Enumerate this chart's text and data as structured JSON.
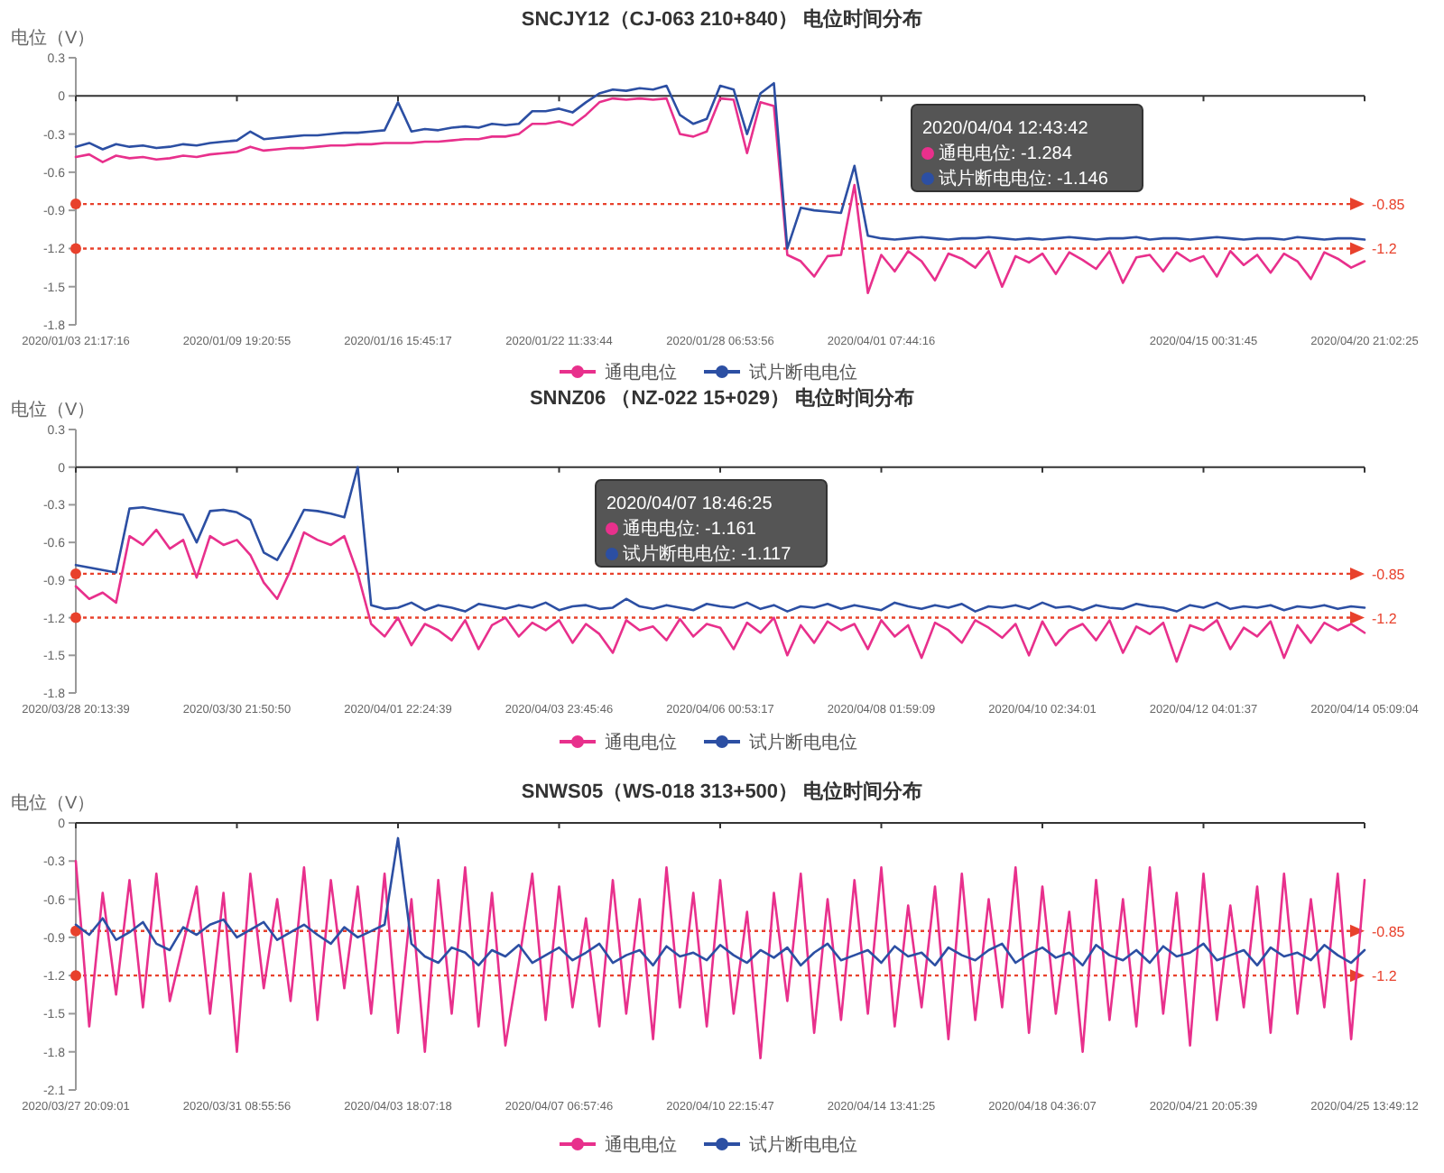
{
  "chart_data": [
    {
      "type": "line",
      "title": "SNCJY12（CJ-063  210+840） 电位时间分布",
      "ylabel": "电位（V）",
      "categories": [
        "2020/01/03 21:17:16",
        null,
        null,
        null,
        null,
        null,
        null,
        null,
        null,
        null,
        null,
        null,
        "2020/01/09 19:20:55",
        null,
        null,
        null,
        null,
        null,
        null,
        null,
        null,
        null,
        null,
        null,
        "2020/01/16 15:45:17",
        null,
        null,
        null,
        null,
        null,
        null,
        null,
        null,
        null,
        null,
        null,
        "2020/01/22 11:33:44",
        null,
        null,
        null,
        null,
        null,
        null,
        null,
        null,
        null,
        null,
        null,
        "2020/01/28 06:53:56",
        null,
        null,
        null,
        null,
        null,
        null,
        null,
        null,
        null,
        null,
        null,
        "2020/04/01 07:44:16",
        null,
        null,
        null,
        null,
        null,
        null,
        null,
        null,
        null,
        null,
        null,
        null,
        null,
        null,
        null,
        null,
        null,
        null,
        null,
        null,
        null,
        null,
        null,
        "2020/04/15 00:31:45",
        null,
        null,
        null,
        null,
        null,
        null,
        null,
        null,
        null,
        null,
        null,
        "2020/04/20 21:02:25"
      ],
      "series": [
        {
          "name": "通电电位",
          "color": "#e8308c",
          "values": [
            -0.48,
            -0.46,
            -0.52,
            -0.47,
            -0.49,
            -0.48,
            -0.5,
            -0.49,
            -0.47,
            -0.48,
            -0.46,
            -0.45,
            -0.44,
            -0.4,
            -0.43,
            -0.42,
            -0.41,
            -0.41,
            -0.4,
            -0.39,
            -0.39,
            -0.38,
            -0.38,
            -0.37,
            -0.37,
            -0.37,
            -0.36,
            -0.36,
            -0.35,
            -0.34,
            -0.34,
            -0.32,
            -0.32,
            -0.3,
            -0.22,
            -0.22,
            -0.2,
            -0.23,
            -0.15,
            -0.05,
            -0.02,
            -0.03,
            -0.02,
            -0.03,
            -0.02,
            -0.3,
            -0.32,
            -0.28,
            -0.02,
            -0.03,
            -0.45,
            -0.05,
            -0.08,
            -1.25,
            -1.3,
            -1.42,
            -1.26,
            -1.25,
            -0.7,
            -1.55,
            -1.25,
            -1.38,
            -1.22,
            -1.3,
            -1.45,
            -1.24,
            -1.28,
            -1.35,
            -1.22,
            -1.5,
            -1.26,
            -1.31,
            -1.24,
            -1.4,
            -1.23,
            -1.29,
            -1.36,
            -1.22,
            -1.47,
            -1.27,
            -1.25,
            -1.38,
            -1.23,
            -1.3,
            -1.26,
            -1.42,
            -1.22,
            -1.33,
            -1.25,
            -1.39,
            -1.24,
            -1.3,
            -1.44,
            -1.23,
            -1.28,
            -1.35,
            -1.3
          ]
        },
        {
          "name": "试片断电电位",
          "color": "#2c4fa3",
          "values": [
            -0.4,
            -0.37,
            -0.42,
            -0.38,
            -0.4,
            -0.39,
            -0.41,
            -0.4,
            -0.38,
            -0.39,
            -0.37,
            -0.36,
            -0.35,
            -0.28,
            -0.34,
            -0.33,
            -0.32,
            -0.31,
            -0.31,
            -0.3,
            -0.29,
            -0.29,
            -0.28,
            -0.27,
            -0.05,
            -0.28,
            -0.26,
            -0.27,
            -0.25,
            -0.24,
            -0.25,
            -0.22,
            -0.23,
            -0.22,
            -0.12,
            -0.12,
            -0.1,
            -0.13,
            -0.05,
            0.02,
            0.05,
            0.04,
            0.06,
            0.05,
            0.08,
            -0.15,
            -0.22,
            -0.18,
            0.08,
            0.05,
            -0.3,
            0.02,
            0.1,
            -1.2,
            -0.88,
            -0.9,
            -0.91,
            -0.92,
            -0.55,
            -1.1,
            -1.12,
            -1.13,
            -1.12,
            -1.11,
            -1.12,
            -1.13,
            -1.12,
            -1.12,
            -1.11,
            -1.12,
            -1.13,
            -1.12,
            -1.13,
            -1.12,
            -1.11,
            -1.12,
            -1.13,
            -1.12,
            -1.12,
            -1.11,
            -1.13,
            -1.12,
            -1.12,
            -1.13,
            -1.12,
            -1.11,
            -1.12,
            -1.13,
            -1.12,
            -1.12,
            -1.13,
            -1.11,
            -1.12,
            -1.13,
            -1.12,
            -1.12,
            -1.13
          ]
        }
      ],
      "ylim": [
        -1.8,
        0.3
      ],
      "yticks": [
        0.3,
        0,
        -0.3,
        -0.6,
        -0.9,
        -1.2,
        -1.5,
        -1.8
      ],
      "ref_lines": [
        {
          "axis": "y",
          "value": -0.85,
          "label": "-0.85",
          "color": "#e8412c",
          "line_style": "dotted"
        },
        {
          "axis": "y",
          "value": -1.2,
          "label": "-1.2",
          "color": "#e8412c",
          "line_style": "dotted"
        }
      ],
      "legend": "bottom",
      "annotations": [
        "2020/04/04 12:43:42",
        "通电电位: -1.284",
        "试片断电电位: -1.146"
      ]
    },
    {
      "type": "line",
      "title": "SNNZ06 （NZ-022   15+029） 电位时间分布",
      "ylabel": "电位（V）",
      "categories": [
        "2020/03/28 20:13:39",
        null,
        null,
        null,
        null,
        null,
        null,
        null,
        null,
        null,
        null,
        null,
        "2020/03/30 21:50:50",
        null,
        null,
        null,
        null,
        null,
        null,
        null,
        null,
        null,
        null,
        null,
        "2020/04/01 22:24:39",
        null,
        null,
        null,
        null,
        null,
        null,
        null,
        null,
        null,
        null,
        null,
        "2020/04/03 23:45:46",
        null,
        null,
        null,
        null,
        null,
        null,
        null,
        null,
        null,
        null,
        null,
        "2020/04/06 00:53:17",
        null,
        null,
        null,
        null,
        null,
        null,
        null,
        null,
        null,
        null,
        null,
        "2020/04/08 01:59:09",
        null,
        null,
        null,
        null,
        null,
        null,
        null,
        null,
        null,
        null,
        null,
        "2020/04/10 02:34:01",
        null,
        null,
        null,
        null,
        null,
        null,
        null,
        null,
        null,
        null,
        null,
        "2020/04/12 04:01:37",
        null,
        null,
        null,
        null,
        null,
        null,
        null,
        null,
        null,
        null,
        null,
        "2020/04/14 05:09:04"
      ],
      "series": [
        {
          "name": "通电电位",
          "color": "#e8308c",
          "values": [
            -0.95,
            -1.05,
            -1.0,
            -1.08,
            -0.55,
            -0.62,
            -0.5,
            -0.65,
            -0.58,
            -0.88,
            -0.55,
            -0.62,
            -0.58,
            -0.7,
            -0.92,
            -1.05,
            -0.82,
            -0.52,
            -0.58,
            -0.62,
            -0.55,
            -0.85,
            -1.25,
            -1.35,
            -1.2,
            -1.42,
            -1.25,
            -1.3,
            -1.38,
            -1.22,
            -1.45,
            -1.26,
            -1.2,
            -1.35,
            -1.24,
            -1.3,
            -1.22,
            -1.4,
            -1.25,
            -1.33,
            -1.48,
            -1.22,
            -1.3,
            -1.27,
            -1.38,
            -1.21,
            -1.35,
            -1.25,
            -1.28,
            -1.45,
            -1.24,
            -1.32,
            -1.2,
            -1.5,
            -1.26,
            -1.4,
            -1.23,
            -1.3,
            -1.25,
            -1.45,
            -1.22,
            -1.35,
            -1.26,
            -1.52,
            -1.24,
            -1.3,
            -1.4,
            -1.22,
            -1.28,
            -1.36,
            -1.25,
            -1.5,
            -1.23,
            -1.42,
            -1.3,
            -1.25,
            -1.38,
            -1.22,
            -1.48,
            -1.27,
            -1.33,
            -1.24,
            -1.55,
            -1.26,
            -1.3,
            -1.22,
            -1.45,
            -1.28,
            -1.35,
            -1.23,
            -1.52,
            -1.26,
            -1.4,
            -1.24,
            -1.3,
            -1.25,
            -1.32
          ]
        },
        {
          "name": "试片断电电位",
          "color": "#2c4fa3",
          "values": [
            -0.78,
            -0.8,
            -0.82,
            -0.84,
            -0.33,
            -0.32,
            -0.34,
            -0.36,
            -0.38,
            -0.6,
            -0.35,
            -0.34,
            -0.36,
            -0.42,
            -0.68,
            -0.74,
            -0.55,
            -0.34,
            -0.35,
            -0.37,
            -0.4,
            0.0,
            -1.1,
            -1.13,
            -1.12,
            -1.08,
            -1.14,
            -1.1,
            -1.12,
            -1.15,
            -1.09,
            -1.11,
            -1.13,
            -1.1,
            -1.12,
            -1.08,
            -1.14,
            -1.11,
            -1.1,
            -1.13,
            -1.12,
            -1.05,
            -1.11,
            -1.13,
            -1.1,
            -1.12,
            -1.14,
            -1.09,
            -1.11,
            -1.12,
            -1.08,
            -1.13,
            -1.1,
            -1.15,
            -1.11,
            -1.12,
            -1.09,
            -1.13,
            -1.1,
            -1.12,
            -1.14,
            -1.08,
            -1.11,
            -1.13,
            -1.1,
            -1.12,
            -1.09,
            -1.15,
            -1.11,
            -1.12,
            -1.1,
            -1.13,
            -1.08,
            -1.12,
            -1.11,
            -1.14,
            -1.1,
            -1.12,
            -1.13,
            -1.09,
            -1.11,
            -1.12,
            -1.15,
            -1.1,
            -1.12,
            -1.08,
            -1.13,
            -1.11,
            -1.12,
            -1.1,
            -1.14,
            -1.11,
            -1.12,
            -1.1,
            -1.13,
            -1.11,
            -1.12
          ]
        }
      ],
      "ylim": [
        -1.8,
        0.3
      ],
      "yticks": [
        0.3,
        0,
        -0.3,
        -0.6,
        -0.9,
        -1.2,
        -1.5,
        -1.8
      ],
      "ref_lines": [
        {
          "axis": "y",
          "value": -0.85,
          "label": "-0.85",
          "color": "#e8412c",
          "line_style": "dotted"
        },
        {
          "axis": "y",
          "value": -1.2,
          "label": "-1.2",
          "color": "#e8412c",
          "line_style": "dotted"
        }
      ],
      "legend": "bottom",
      "annotations": [
        "2020/04/07 18:46:25",
        "通电电位: -1.161",
        "试片断电电位: -1.117"
      ]
    },
    {
      "type": "line",
      "title": "SNWS05（WS-018 313+500） 电位时间分布",
      "ylabel": "电位（V）",
      "categories": [
        "2020/03/27 20:09:01",
        null,
        null,
        null,
        null,
        null,
        null,
        null,
        null,
        null,
        null,
        null,
        "2020/03/31 08:55:56",
        null,
        null,
        null,
        null,
        null,
        null,
        null,
        null,
        null,
        null,
        null,
        "2020/04/03 18:07:18",
        null,
        null,
        null,
        null,
        null,
        null,
        null,
        null,
        null,
        null,
        null,
        "2020/04/07 06:57:46",
        null,
        null,
        null,
        null,
        null,
        null,
        null,
        null,
        null,
        null,
        null,
        "2020/04/10 22:15:47",
        null,
        null,
        null,
        null,
        null,
        null,
        null,
        null,
        null,
        null,
        null,
        "2020/04/14 13:41:25",
        null,
        null,
        null,
        null,
        null,
        null,
        null,
        null,
        null,
        null,
        null,
        "2020/04/18 04:36:07",
        null,
        null,
        null,
        null,
        null,
        null,
        null,
        null,
        null,
        null,
        null,
        "2020/04/21 20:05:39",
        null,
        null,
        null,
        null,
        null,
        null,
        null,
        null,
        null,
        null,
        null,
        "2020/04/25 13:49:12"
      ],
      "series": [
        {
          "name": "通电电位",
          "color": "#e8308c",
          "values": [
            -0.3,
            -1.6,
            -0.55,
            -1.35,
            -0.45,
            -1.45,
            -0.4,
            -1.4,
            -0.95,
            -0.5,
            -1.5,
            -0.55,
            -1.8,
            -0.4,
            -1.3,
            -0.6,
            -1.4,
            -0.35,
            -1.55,
            -0.45,
            -1.3,
            -0.5,
            -1.5,
            -0.4,
            -1.65,
            -0.6,
            -1.8,
            -0.45,
            -1.5,
            -0.35,
            -1.6,
            -0.55,
            -1.75,
            -1.1,
            -0.4,
            -1.55,
            -0.5,
            -1.45,
            -0.75,
            -1.6,
            -0.45,
            -1.5,
            -0.6,
            -1.7,
            -0.35,
            -1.45,
            -0.55,
            -1.6,
            -0.45,
            -1.5,
            -0.7,
            -1.85,
            -0.55,
            -1.4,
            -0.4,
            -1.65,
            -0.6,
            -1.55,
            -0.45,
            -1.5,
            -0.35,
            -1.6,
            -0.65,
            -1.45,
            -0.5,
            -1.7,
            -0.4,
            -1.55,
            -0.6,
            -1.45,
            -0.35,
            -1.65,
            -0.5,
            -1.5,
            -0.7,
            -1.8,
            -0.45,
            -1.55,
            -0.6,
            -1.6,
            -0.35,
            -1.5,
            -0.55,
            -1.75,
            -0.4,
            -1.55,
            -0.65,
            -1.45,
            -0.5,
            -1.65,
            -0.4,
            -1.5,
            -0.6,
            -1.45,
            -0.4,
            -1.7,
            -0.45
          ]
        },
        {
          "name": "试片断电电位",
          "color": "#2c4fa3",
          "values": [
            -0.8,
            -0.88,
            -0.75,
            -0.92,
            -0.86,
            -0.78,
            -0.95,
            -1.0,
            -0.82,
            -0.88,
            -0.8,
            -0.76,
            -0.9,
            -0.84,
            -0.78,
            -0.92,
            -0.86,
            -0.8,
            -0.88,
            -0.95,
            -0.82,
            -0.9,
            -0.85,
            -0.8,
            -0.12,
            -0.95,
            -1.05,
            -1.1,
            -0.98,
            -1.02,
            -1.12,
            -1.0,
            -1.05,
            -0.96,
            -1.1,
            -1.04,
            -0.98,
            -1.08,
            -1.02,
            -0.95,
            -1.1,
            -1.04,
            -1.0,
            -1.12,
            -0.97,
            -1.05,
            -1.02,
            -1.08,
            -0.96,
            -1.04,
            -1.1,
            -1.0,
            -1.06,
            -0.98,
            -1.12,
            -1.02,
            -0.95,
            -1.08,
            -1.04,
            -1.0,
            -1.1,
            -0.97,
            -1.05,
            -1.02,
            -1.12,
            -0.98,
            -1.04,
            -1.08,
            -1.0,
            -0.95,
            -1.1,
            -1.03,
            -0.98,
            -1.06,
            -1.02,
            -1.12,
            -0.96,
            -1.04,
            -1.08,
            -1.0,
            -1.1,
            -0.97,
            -1.05,
            -1.02,
            -0.95,
            -1.08,
            -1.04,
            -1.0,
            -1.12,
            -0.98,
            -1.05,
            -1.02,
            -1.08,
            -0.96,
            -1.04,
            -1.1,
            -1.0
          ]
        }
      ],
      "ylim": [
        -2.1,
        0
      ],
      "yticks": [
        0,
        -0.3,
        -0.6,
        -0.9,
        -1.2,
        -1.5,
        -1.8,
        -2.1
      ],
      "ref_lines": [
        {
          "axis": "y",
          "value": -0.85,
          "label": "-0.85",
          "color": "#e8412c",
          "line_style": "dotted"
        },
        {
          "axis": "y",
          "value": -1.2,
          "label": "-1.2",
          "color": "#e8412c",
          "line_style": "dotted"
        }
      ],
      "legend": "bottom"
    }
  ]
}
